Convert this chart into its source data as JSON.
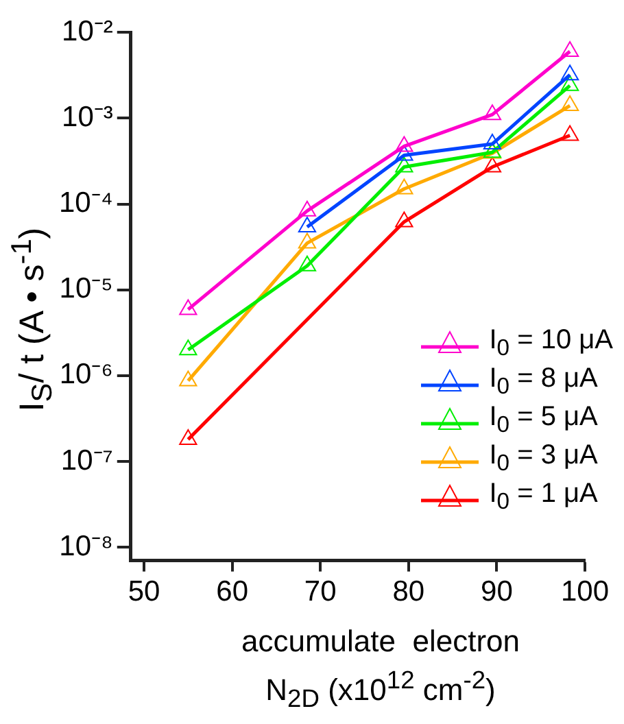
{
  "chart_data": {
    "type": "line",
    "xlabel": "accumulate  electron\nN$_{2D}$ (x10$^{12}$ cm$^{-2}$)",
    "ylabel": "I$_{S}$/ t (A • s$^{-1}$)",
    "x": [
      55,
      68.5,
      79.5,
      89.5,
      98.3
    ],
    "series": [
      {
        "name": "I$_{0}$ = 10 μA",
        "color": "#ff00cc",
        "values": [
          5.9e-06,
          8.3e-05,
          0.00047,
          0.0011,
          0.006
        ]
      },
      {
        "name": "I$_{0}$ = 8 μA",
        "color": "#0044ff",
        "values": [
          null,
          5.4e-05,
          0.00037,
          0.0005,
          0.0032
        ]
      },
      {
        "name": "I$_{0}$ = 5 μA",
        "color": "#00ee00",
        "values": [
          2e-06,
          1.9e-05,
          0.00027,
          0.0004,
          0.0024
        ]
      },
      {
        "name": "I$_{0}$ = 3 μA",
        "color": "#ffaa00",
        "values": [
          8.7e-07,
          3.5e-05,
          0.00015,
          0.00039,
          0.0014
        ]
      },
      {
        "name": "I$_{0}$ = 1 μA",
        "color": "#ff0000",
        "x": [
          55,
          79.5,
          89.5,
          98.3
        ],
        "values": [
          1.8e-07,
          6.2e-05,
          0.00027,
          0.00063
        ]
      }
    ],
    "xlim": [
      48.5,
      100
    ],
    "xticks": [
      50,
      60,
      70,
      80,
      90,
      100
    ],
    "ylim": [
      7e-09,
      0.01
    ],
    "yticks": [
      {
        "value": 1e-08,
        "label": "10⁻⁸"
      },
      {
        "value": 1e-07,
        "label": "10⁻⁷"
      },
      {
        "value": 1e-06,
        "label": "10⁻⁶"
      },
      {
        "value": 1e-05,
        "label": "10⁻⁵"
      },
      {
        "value": 0.0001,
        "label": "10⁻⁴"
      },
      {
        "value": 0.001,
        "label": "10⁻³"
      },
      {
        "value": 0.01,
        "label": "10⁻²"
      }
    ],
    "log": "y",
    "grid": false,
    "legend": "right",
    "marker": "triangle",
    "line_style": "solid"
  }
}
